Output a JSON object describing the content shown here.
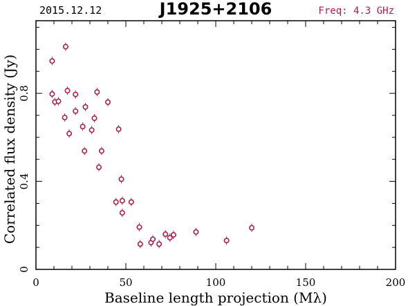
{
  "chart_data": {
    "type": "scatter",
    "date": "2015.12.12",
    "title": "J1925+2106",
    "freq_label": "Freq: 4.3 GHz",
    "xlabel": "Baseline length projection (Mλ)",
    "ylabel": "Correlated flux density (Jy)",
    "xlim": [
      0,
      200
    ],
    "ylim": [
      0,
      1.13
    ],
    "x_ticks": [
      0,
      50,
      100,
      150,
      200
    ],
    "y_ticks": [
      0,
      0.4,
      0.8
    ],
    "x_ticks_text": [
      "0",
      "50",
      "100",
      "150",
      "200"
    ],
    "y_ticks_text": [
      "0",
      "0.4",
      "0.8"
    ],
    "grid": false,
    "marker_color": "#a8204a",
    "points": [
      {
        "x": 9.0,
        "y": 0.947
      },
      {
        "x": 9.0,
        "y": 0.797
      },
      {
        "x": 10.5,
        "y": 0.761
      },
      {
        "x": 12.5,
        "y": 0.764
      },
      {
        "x": 16.5,
        "y": 1.012
      },
      {
        "x": 16.0,
        "y": 0.69
      },
      {
        "x": 17.5,
        "y": 0.812
      },
      {
        "x": 18.5,
        "y": 0.617
      },
      {
        "x": 22.0,
        "y": 0.795
      },
      {
        "x": 22.0,
        "y": 0.719
      },
      {
        "x": 26.0,
        "y": 0.649
      },
      {
        "x": 27.0,
        "y": 0.538
      },
      {
        "x": 27.5,
        "y": 0.738
      },
      {
        "x": 31.0,
        "y": 0.633
      },
      {
        "x": 32.5,
        "y": 0.687
      },
      {
        "x": 34.0,
        "y": 0.806
      },
      {
        "x": 35.0,
        "y": 0.464
      },
      {
        "x": 36.5,
        "y": 0.538
      },
      {
        "x": 40.0,
        "y": 0.76
      },
      {
        "x": 44.5,
        "y": 0.306
      },
      {
        "x": 46.0,
        "y": 0.637
      },
      {
        "x": 47.5,
        "y": 0.41
      },
      {
        "x": 48.0,
        "y": 0.312
      },
      {
        "x": 48.0,
        "y": 0.257
      },
      {
        "x": 53.0,
        "y": 0.306
      },
      {
        "x": 57.5,
        "y": 0.192
      },
      {
        "x": 58.0,
        "y": 0.115
      },
      {
        "x": 64.0,
        "y": 0.122
      },
      {
        "x": 65.0,
        "y": 0.137
      },
      {
        "x": 68.5,
        "y": 0.115
      },
      {
        "x": 72.0,
        "y": 0.16
      },
      {
        "x": 74.5,
        "y": 0.144
      },
      {
        "x": 76.5,
        "y": 0.157
      },
      {
        "x": 89.0,
        "y": 0.17
      },
      {
        "x": 106.0,
        "y": 0.131
      },
      {
        "x": 120.0,
        "y": 0.189
      }
    ]
  }
}
